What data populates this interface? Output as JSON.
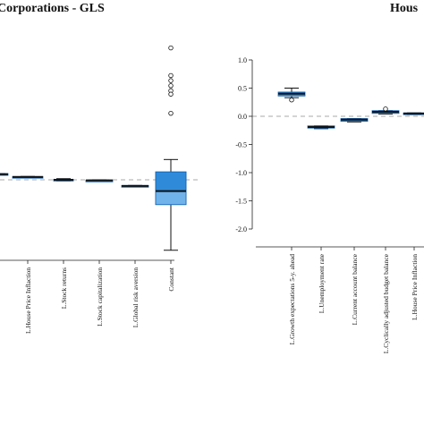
{
  "chart_data": [
    {
      "type": "box",
      "title": "Corporations - GLS",
      "categories": [
        "",
        "L.House Price Inflaction",
        "L.Stock returns",
        "L.Stock capitalization",
        "L.Global risk aversion",
        "Constant"
      ],
      "boxes": [
        {
          "q1": 0.08,
          "median": 0.1,
          "q3": 0.11,
          "whisker_low": 0.08,
          "whisker_high": 0.11,
          "outliers": []
        },
        {
          "q1": 0.04,
          "median": 0.05,
          "q3": 0.06,
          "whisker_low": 0.04,
          "whisker_high": 0.06,
          "outliers": []
        },
        {
          "q1": -0.01,
          "median": 0.0,
          "q3": 0.01,
          "whisker_low": -0.02,
          "whisker_high": 0.02,
          "outliers": []
        },
        {
          "q1": -0.02,
          "median": -0.01,
          "q3": -0.005,
          "whisker_low": -0.02,
          "whisker_high": 0.0,
          "outliers": []
        },
        {
          "q1": -0.12,
          "median": -0.11,
          "q3": -0.1,
          "whisker_low": -0.12,
          "whisker_high": -0.1,
          "outliers": []
        },
        {
          "q1": -0.44,
          "median": -0.2,
          "q3": 0.14,
          "whisker_low": -1.25,
          "whisker_high": 0.36,
          "outliers": [
            2.34,
            1.85,
            1.76,
            1.67,
            1.58,
            1.52,
            1.18
          ]
        }
      ],
      "baseline": 0.0
    },
    {
      "type": "box",
      "title": "Hous",
      "ylim": [
        -2.0,
        1.0
      ],
      "yticks": [
        "1.0",
        "0.5",
        "0.0",
        "-0.5",
        "-1.0",
        "-1.5",
        "-2.0"
      ],
      "categories": [
        "L.Growth expectations 5-y. ahead",
        "L.Unemployment rate",
        "L.Current account balance",
        "L.Cyclically adjusted budget balance",
        "L.House Price Inflaction"
      ],
      "boxes": [
        {
          "q1": 0.36,
          "median": 0.4,
          "q3": 0.43,
          "whisker_low": 0.33,
          "whisker_high": 0.5,
          "outliers": [
            0.29
          ]
        },
        {
          "q1": -0.21,
          "median": -0.19,
          "q3": -0.17,
          "whisker_low": -0.22,
          "whisker_high": -0.17,
          "outliers": []
        },
        {
          "q1": -0.09,
          "median": -0.06,
          "q3": -0.04,
          "whisker_low": -0.1,
          "whisker_high": -0.04,
          "outliers": []
        },
        {
          "q1": 0.05,
          "median": 0.08,
          "q3": 0.1,
          "whisker_low": 0.04,
          "whisker_high": 0.1,
          "outliers": [
            0.13
          ]
        },
        {
          "q1": 0.03,
          "median": 0.05,
          "q3": 0.06,
          "whisker_low": 0.03,
          "whisker_high": 0.06,
          "outliers": []
        }
      ],
      "baseline": 0.0
    }
  ],
  "colors": {
    "box_fill": "#2f8bd9",
    "box_light": "#6fb3ea",
    "box_dark": "#1565b5",
    "baseline": "#aaaaaa",
    "axis": "#222222"
  }
}
